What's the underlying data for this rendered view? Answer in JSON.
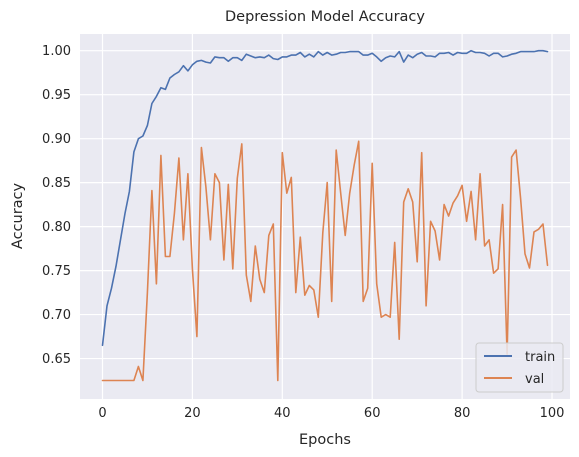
{
  "chart_data": {
    "type": "line",
    "title": "Depression Model Accuracy",
    "xlabel": "Epochs",
    "ylabel": "Accuracy",
    "xlim": [
      -5,
      104
    ],
    "ylim": [
      0.604,
      1.019
    ],
    "xticks": [
      0,
      20,
      40,
      60,
      80,
      100
    ],
    "yticks": [
      0.65,
      0.7,
      0.75,
      0.8,
      0.85,
      0.9,
      0.95,
      1.0
    ],
    "ytick_labels": [
      "0.65",
      "0.70",
      "0.75",
      "0.80",
      "0.85",
      "0.90",
      "0.95",
      "1.00"
    ],
    "grid": true,
    "legend_position": "lower-right",
    "series": [
      {
        "name": "train",
        "color": "#4c72b0",
        "x": [
          0,
          1,
          2,
          3,
          4,
          5,
          6,
          7,
          8,
          9,
          10,
          11,
          12,
          13,
          14,
          15,
          16,
          17,
          18,
          19,
          20,
          21,
          22,
          23,
          24,
          25,
          26,
          27,
          28,
          29,
          30,
          31,
          32,
          33,
          34,
          35,
          36,
          37,
          38,
          39,
          40,
          41,
          42,
          43,
          44,
          45,
          46,
          47,
          48,
          49,
          50,
          51,
          52,
          53,
          54,
          55,
          56,
          57,
          58,
          59,
          60,
          61,
          62,
          63,
          64,
          65,
          66,
          67,
          68,
          69,
          70,
          71,
          72,
          73,
          74,
          75,
          76,
          77,
          78,
          79,
          80,
          81,
          82,
          83,
          84,
          85,
          86,
          87,
          88,
          89,
          90,
          91,
          92,
          93,
          94,
          95,
          96,
          97,
          98,
          99
        ],
        "values": [
          0.665,
          0.71,
          0.73,
          0.755,
          0.785,
          0.815,
          0.84,
          0.885,
          0.9,
          0.903,
          0.915,
          0.94,
          0.948,
          0.958,
          0.956,
          0.969,
          0.973,
          0.976,
          0.983,
          0.977,
          0.984,
          0.988,
          0.989,
          0.987,
          0.986,
          0.993,
          0.992,
          0.992,
          0.988,
          0.992,
          0.992,
          0.989,
          0.996,
          0.994,
          0.992,
          0.993,
          0.992,
          0.995,
          0.991,
          0.99,
          0.993,
          0.993,
          0.995,
          0.995,
          0.998,
          0.993,
          0.996,
          0.993,
          0.999,
          0.995,
          0.998,
          0.995,
          0.996,
          0.998,
          0.998,
          0.999,
          0.999,
          0.999,
          0.995,
          0.995,
          0.997,
          0.993,
          0.988,
          0.992,
          0.994,
          0.993,
          0.999,
          0.987,
          0.995,
          0.992,
          0.996,
          0.998,
          0.994,
          0.994,
          0.993,
          0.997,
          0.997,
          0.998,
          0.995,
          0.998,
          0.997,
          0.997,
          1.0,
          0.998,
          0.998,
          0.997,
          0.994,
          0.997,
          0.997,
          0.993,
          0.994,
          0.996,
          0.997,
          0.999,
          0.999,
          0.999,
          0.999,
          1.0,
          1.0,
          0.999
        ]
      },
      {
        "name": "val",
        "color": "#dd8452",
        "x": [
          0,
          1,
          2,
          3,
          4,
          5,
          6,
          7,
          8,
          9,
          10,
          11,
          12,
          13,
          14,
          15,
          16,
          17,
          18,
          19,
          20,
          21,
          22,
          23,
          24,
          25,
          26,
          27,
          28,
          29,
          30,
          31,
          32,
          33,
          34,
          35,
          36,
          37,
          38,
          39,
          40,
          41,
          42,
          43,
          44,
          45,
          46,
          47,
          48,
          49,
          50,
          51,
          52,
          53,
          54,
          55,
          56,
          57,
          58,
          59,
          60,
          61,
          62,
          63,
          64,
          65,
          66,
          67,
          68,
          69,
          70,
          71,
          72,
          73,
          74,
          75,
          76,
          77,
          78,
          79,
          80,
          81,
          82,
          83,
          84,
          85,
          86,
          87,
          88,
          89,
          90,
          91,
          92,
          93,
          94,
          95,
          96,
          97,
          98,
          99
        ],
        "values": [
          0.625,
          0.625,
          0.625,
          0.625,
          0.625,
          0.625,
          0.625,
          0.625,
          0.641,
          0.625,
          0.725,
          0.841,
          0.735,
          0.881,
          0.766,
          0.766,
          0.815,
          0.878,
          0.785,
          0.86,
          0.752,
          0.675,
          0.89,
          0.845,
          0.785,
          0.86,
          0.85,
          0.762,
          0.848,
          0.752,
          0.855,
          0.894,
          0.745,
          0.715,
          0.778,
          0.74,
          0.725,
          0.79,
          0.803,
          0.625,
          0.884,
          0.838,
          0.856,
          0.725,
          0.788,
          0.722,
          0.733,
          0.728,
          0.697,
          0.793,
          0.85,
          0.715,
          0.887,
          0.838,
          0.79,
          0.838,
          0.87,
          0.897,
          0.715,
          0.73,
          0.872,
          0.735,
          0.697,
          0.7,
          0.697,
          0.782,
          0.672,
          0.828,
          0.843,
          0.828,
          0.76,
          0.884,
          0.71,
          0.806,
          0.795,
          0.762,
          0.825,
          0.812,
          0.827,
          0.835,
          0.847,
          0.806,
          0.84,
          0.785,
          0.86,
          0.778,
          0.785,
          0.747,
          0.752,
          0.825,
          0.655,
          0.879,
          0.887,
          0.832,
          0.769,
          0.753,
          0.794,
          0.797,
          0.803,
          0.756
        ]
      }
    ]
  }
}
